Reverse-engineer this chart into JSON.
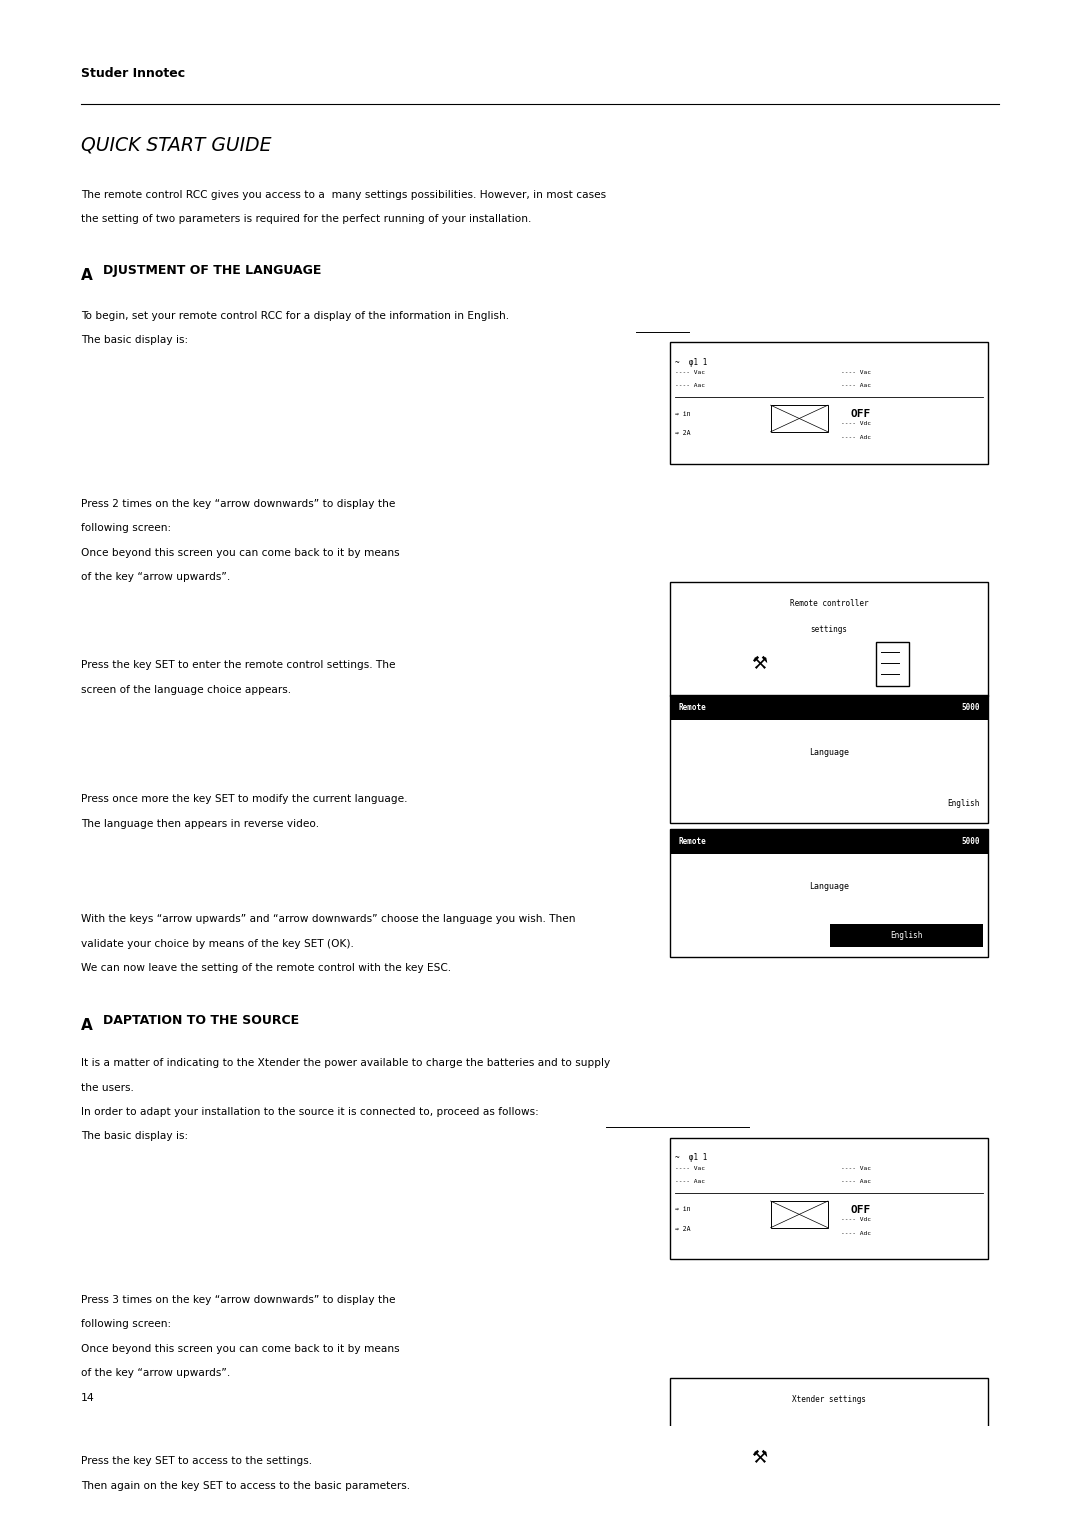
{
  "page_bg": "#ffffff",
  "brand": "Studer Innotec",
  "title": "QUICK START GUIDE",
  "intro_line1": "The remote control RCC gives you access to a  many settings possibilities. However, in most cases",
  "intro_line2": "the setting of two parameters is required for the perfect running of your installation.",
  "section1_title": "DJUSTMENT OF THE LANGUAGE",
  "section1_first": "A",
  "para1_line1": "To begin, set your remote control RCC for a display of the information in English.",
  "para1_line2": "The basic display is:",
  "para2": "Press 2 times on the key “arrow downwards” to display the\nfollowing screen:\nOnce beyond this screen you can come back to it by means\nof the key “arrow upwards”.",
  "para3": "Press the key SET to enter the remote control settings. The\nscreen of the language choice appears.",
  "para4": "Press once more the key SET to modify the current language.\nThe language then appears in reverse video.",
  "para5_line1": "With the keys “arrow upwards” and “arrow downwards” choose the language you wish. Then",
  "para5_line2": "validate your choice by means of the key SET (OK).",
  "para5_line3": "We can now leave the setting of the remote control with the key ESC.",
  "section2_title": "DAPTATION TO THE SOURCE",
  "section2_first": "A",
  "para6_line1": "It is a matter of indicating to the Xtender the power available to charge the batteries and to supply",
  "para6_line2": "the users.",
  "para6_line3": "In order to adapt your installation to the source it is connected to, proceed as follows:",
  "para6_line4": "The basic display is:",
  "para6_underline_start": "proceed as follows:",
  "para7": "Press 3 times on the key “arrow downwards” to display the\nfollowing screen:\nOnce beyond this screen you can come back to it by means\nof the key “arrow upwards”.",
  "para8_line1": "Press the key SET to access to the settings.",
  "para8_line2": "Then again on the key SET to access to the basic parameters.",
  "page_number": "14"
}
